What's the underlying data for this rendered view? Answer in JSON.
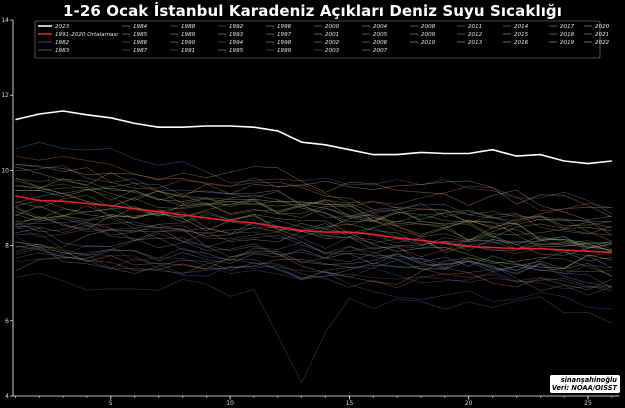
{
  "chart_data": {
    "type": "line",
    "title": "1-26 Ocak İstanbul Karadeniz Açıkları Deniz Suyu Sıcaklığı",
    "xlabel": "",
    "ylabel": "",
    "xlim": [
      0.9,
      26.3
    ],
    "ylim": [
      4,
      14
    ],
    "x_ticks": [
      5,
      10,
      15,
      20,
      25
    ],
    "y_ticks": [
      4,
      6,
      8,
      10,
      12,
      14
    ],
    "grid": false,
    "legend_position": "top",
    "x": [
      1,
      2,
      3,
      4,
      5,
      6,
      7,
      8,
      9,
      10,
      11,
      12,
      13,
      14,
      15,
      16,
      17,
      18,
      19,
      20,
      21,
      22,
      23,
      24,
      25,
      26
    ],
    "highlight_series": [
      {
        "name": "2023",
        "color": "#ffffff",
        "values": [
          11.35,
          11.5,
          11.58,
          11.48,
          11.4,
          11.25,
          11.15,
          11.15,
          11.18,
          11.18,
          11.15,
          11.05,
          10.75,
          10.68,
          10.55,
          10.42,
          10.42,
          10.48,
          10.45,
          10.45,
          10.55,
          10.38,
          10.42,
          10.25,
          10.18,
          10.25
        ]
      },
      {
        "name": "1991-2020 Ortalaması",
        "color": "#e8202a",
        "values": [
          9.32,
          9.2,
          9.18,
          9.12,
          9.06,
          8.98,
          8.9,
          8.82,
          8.74,
          8.66,
          8.6,
          8.5,
          8.4,
          8.36,
          8.36,
          8.3,
          8.2,
          8.14,
          8.06,
          7.98,
          7.95,
          7.92,
          7.92,
          7.88,
          7.85,
          7.82
        ]
      }
    ],
    "year_series": [
      {
        "name": "1982",
        "color": "#5577bb",
        "base": 10.5,
        "slope": -0.06
      },
      {
        "name": "1983",
        "color": "#7788cc",
        "base": 9.9,
        "slope": -0.07
      },
      {
        "name": "1984",
        "color": "#8899aa",
        "base": 8.4,
        "slope": -0.02
      },
      {
        "name": "1985",
        "color": "#889977",
        "base": 9.6,
        "slope": -0.06
      },
      {
        "name": "1986",
        "color": "#667788",
        "base": 8.9,
        "slope": -0.05
      },
      {
        "name": "1987",
        "color": "#996655",
        "base": 7.6,
        "slope": -0.03
      },
      {
        "name": "1988",
        "color": "#6677aa",
        "base": 8.1,
        "slope": -0.05
      },
      {
        "name": "1989",
        "color": "#aa8866",
        "base": 9.4,
        "slope": -0.04
      },
      {
        "name": "1990",
        "color": "#778899",
        "base": 8.6,
        "slope": -0.03
      },
      {
        "name": "1991",
        "color": "#555588",
        "base": 8.0,
        "slope": -0.06
      },
      {
        "name": "1992",
        "color": "#556699",
        "base": 7.4,
        "slope": -0.02
      },
      {
        "name": "1993",
        "color": "#aaaa66",
        "base": 8.8,
        "slope": -0.02
      },
      {
        "name": "1994",
        "color": "#4466aa",
        "base": 7.8,
        "slope": -0.05
      },
      {
        "name": "1995",
        "color": "#88aa77",
        "base": 9.8,
        "slope": -0.07
      },
      {
        "name": "1996",
        "color": "#9999aa",
        "base": 8.3,
        "slope": -0.04
      },
      {
        "name": "1997",
        "color": "#bb7755",
        "base": 7.5,
        "slope": -0.02
      },
      {
        "name": "1998",
        "color": "#aa9977",
        "base": 9.2,
        "slope": -0.03
      },
      {
        "name": "1999",
        "color": "#667799",
        "base": 8.7,
        "slope": -0.06
      },
      {
        "name": "2000",
        "color": "#778866",
        "base": 8.2,
        "slope": -0.03
      },
      {
        "name": "2001",
        "color": "#cc9944",
        "base": 9.0,
        "slope": -0.02
      },
      {
        "name": "2002",
        "color": "#8877aa",
        "base": 8.5,
        "slope": -0.05
      },
      {
        "name": "2003",
        "color": "#556677",
        "base": 7.2,
        "slope": -0.04
      },
      {
        "name": "2004",
        "color": "#999977",
        "base": 9.5,
        "slope": -0.04
      },
      {
        "name": "2005",
        "color": "#7799aa",
        "base": 8.0,
        "slope": -0.02
      },
      {
        "name": "2006",
        "color": "#aa7788",
        "base": 8.6,
        "slope": -0.04
      },
      {
        "name": "2007",
        "color": "#7799bb",
        "base": 9.1,
        "slope": -0.05
      },
      {
        "name": "2008",
        "color": "#cc8855",
        "base": 7.9,
        "slope": -0.03
      },
      {
        "name": "2009",
        "color": "#88aa88",
        "base": 9.7,
        "slope": -0.06
      },
      {
        "name": "2010",
        "color": "#bbaa66",
        "base": 10.0,
        "slope": -0.04
      },
      {
        "name": "2011",
        "color": "#aa6655",
        "base": 8.4,
        "slope": -0.04
      },
      {
        "name": "2012",
        "color": "#6688aa",
        "base": 7.7,
        "slope": -0.03
      },
      {
        "name": "2013",
        "color": "#99bb77",
        "base": 9.3,
        "slope": -0.05
      },
      {
        "name": "2014",
        "color": "#cc6644",
        "base": 10.2,
        "slope": -0.05
      },
      {
        "name": "2015",
        "color": "#aaaa55",
        "base": 9.6,
        "slope": -0.06
      },
      {
        "name": "2016",
        "color": "#88bb66",
        "base": 8.8,
        "slope": -0.03
      },
      {
        "name": "2017",
        "color": "#8899bb",
        "base": 8.1,
        "slope": -0.02
      },
      {
        "name": "2018",
        "color": "#bb8866",
        "base": 9.9,
        "slope": -0.06
      },
      {
        "name": "2019",
        "color": "#99aa88",
        "base": 8.9,
        "slope": -0.04
      },
      {
        "name": "2020",
        "color": "#cc9966",
        "base": 10.4,
        "slope": -0.06
      },
      {
        "name": "2021",
        "color": "#aa8855",
        "base": 9.4,
        "slope": -0.05
      },
      {
        "name": "2022",
        "color": "#bbbb77",
        "base": 9.0,
        "slope": -0.05
      }
    ],
    "legend_order": [
      "2023",
      "1984",
      "1988",
      "1992",
      "1996",
      "2000",
      "2004",
      "2008",
      "2011",
      "2014",
      "2017",
      "2020",
      "1991-2020 Ortalaması",
      "1985",
      "1989",
      "1993",
      "1997",
      "2001",
      "2005",
      "2009",
      "2012",
      "2015",
      "2018",
      "2021",
      "1982",
      "1986",
      "1990",
      "1994",
      "1998",
      "2002",
      "2006",
      "2010",
      "2013",
      "2016",
      "2019",
      "2022",
      "1983",
      "1987",
      "1991",
      "1995",
      "1999",
      "2003",
      "2007"
    ]
  },
  "credit": {
    "author": "sinanşahinoğlu",
    "source": "Veri: NOAA/OISST"
  }
}
